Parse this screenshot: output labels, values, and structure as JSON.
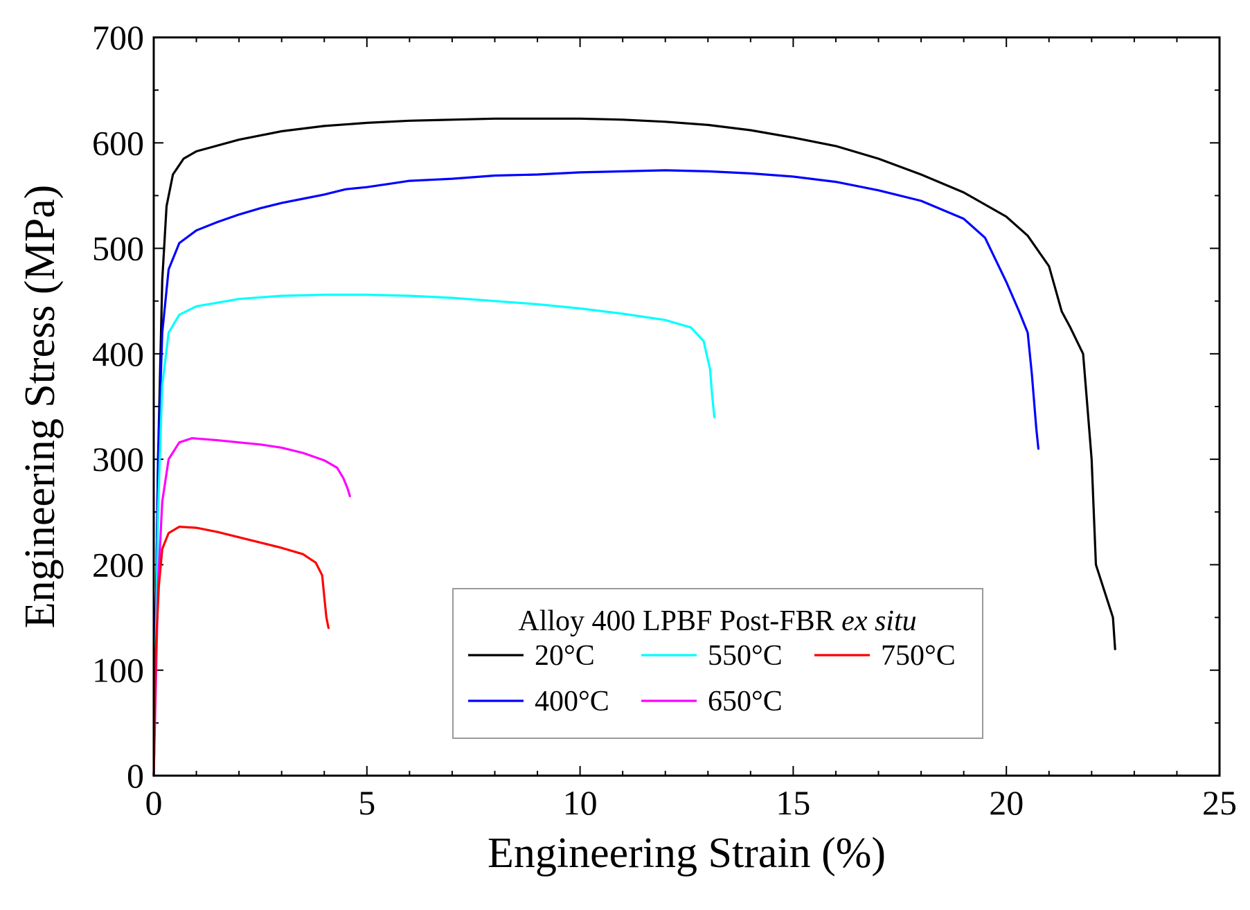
{
  "chart_data": {
    "type": "line",
    "title": "",
    "xlabel": "Engineering Strain (%)",
    "ylabel": "Engineering Stress (MPa)",
    "xlim": [
      0,
      25
    ],
    "ylim": [
      0,
      700
    ],
    "xticks": [
      0,
      5,
      10,
      15,
      20,
      25
    ],
    "xtick_labels": [
      "0",
      "5",
      "10",
      "15",
      "20",
      "25"
    ],
    "yticks": [
      0,
      100,
      200,
      300,
      400,
      500,
      600,
      700
    ],
    "ytick_labels": [
      "0",
      "100",
      "200",
      "300",
      "400",
      "500",
      "600",
      "700"
    ],
    "grid": false,
    "legend": {
      "placement": "bottom-center",
      "title_prefix": "Alloy 400 LPBF Post-FBR ",
      "title_italic": "ex situ"
    },
    "series": [
      {
        "name": "20°C",
        "color": "#000000",
        "x": [
          0,
          0.1,
          0.2,
          0.3,
          0.45,
          0.7,
          1.0,
          2,
          3,
          4,
          5,
          6,
          7,
          8,
          9,
          10,
          11,
          12,
          13,
          14,
          15,
          16,
          17,
          18,
          19,
          20,
          20.5,
          21,
          21.3,
          21.5,
          21.8,
          21.9,
          22.0,
          22.1,
          22.3,
          22.5,
          22.55
        ],
        "y": [
          0,
          300,
          470,
          540,
          570,
          585,
          592,
          603,
          611,
          616,
          619,
          621,
          622,
          623,
          623,
          623,
          622,
          620,
          617,
          612,
          605,
          597,
          585,
          570,
          553,
          530,
          512,
          483,
          440,
          425,
          400,
          350,
          300,
          200,
          175,
          150,
          120
        ]
      },
      {
        "name": "400°C",
        "color": "#0000ff",
        "x": [
          0,
          0.1,
          0.2,
          0.35,
          0.6,
          1.0,
          1.5,
          2,
          2.5,
          3,
          3.5,
          4,
          4.5,
          5,
          5.5,
          6,
          7,
          8,
          9,
          10,
          11,
          12,
          13,
          14,
          15,
          16,
          17,
          18,
          19,
          19.5,
          20,
          20.3,
          20.5,
          20.6,
          20.7,
          20.75
        ],
        "y": [
          0,
          300,
          420,
          480,
          505,
          517,
          525,
          532,
          538,
          543,
          547,
          551,
          556,
          558,
          561,
          564,
          566,
          569,
          570,
          572,
          573,
          574,
          573,
          571,
          568,
          563,
          555,
          545,
          528,
          510,
          468,
          440,
          420,
          380,
          330,
          310
        ]
      },
      {
        "name": "550°C",
        "color": "#00ffff",
        "x": [
          0,
          0.1,
          0.2,
          0.35,
          0.6,
          1.0,
          2,
          3,
          4,
          5,
          6,
          7,
          8,
          9,
          10,
          11,
          12,
          12.6,
          12.9,
          13.05,
          13.1,
          13.15
        ],
        "y": [
          0,
          250,
          370,
          420,
          437,
          445,
          452,
          455,
          456,
          456,
          455,
          453,
          450,
          447,
          443,
          438,
          432,
          425,
          412,
          385,
          360,
          340
        ]
      },
      {
        "name": "650°C",
        "color": "#ff00ff",
        "x": [
          0,
          0.1,
          0.2,
          0.35,
          0.6,
          0.9,
          1.5,
          2,
          2.5,
          3,
          3.5,
          4,
          4.3,
          4.45,
          4.55,
          4.6
        ],
        "y": [
          0,
          180,
          260,
          300,
          316,
          320,
          318,
          316,
          314,
          311,
          306,
          299,
          292,
          282,
          272,
          265
        ]
      },
      {
        "name": "750°C",
        "color": "#ff0000",
        "x": [
          0,
          0.05,
          0.12,
          0.2,
          0.35,
          0.6,
          1.0,
          1.5,
          2,
          2.5,
          3,
          3.5,
          3.8,
          3.95,
          4.0,
          4.05,
          4.1
        ],
        "y": [
          0,
          120,
          180,
          215,
          230,
          236,
          235,
          231,
          226,
          221,
          216,
          210,
          202,
          190,
          170,
          150,
          140
        ]
      }
    ]
  }
}
